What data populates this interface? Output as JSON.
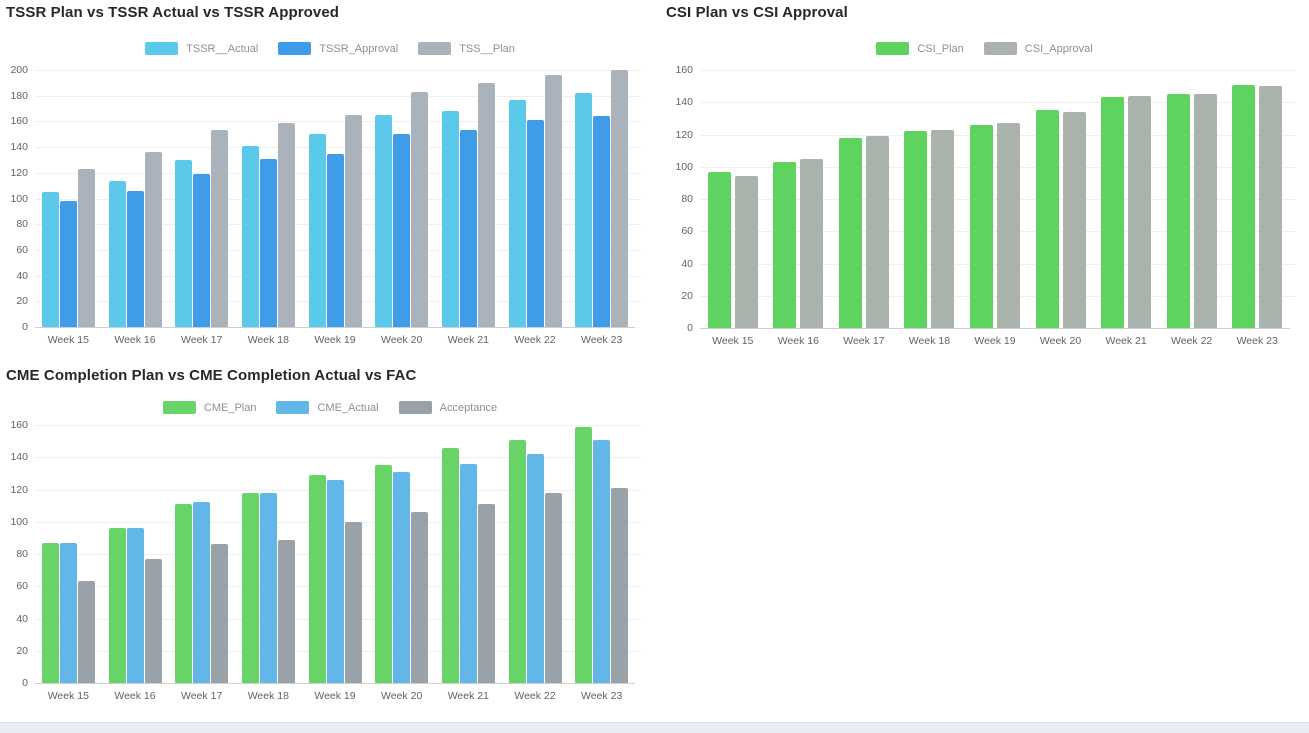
{
  "chart_data": [
    {
      "type": "bar",
      "title": "TSSR Plan vs TSSR Actual vs TSSR Approved",
      "categories": [
        "Week 15",
        "Week 16",
        "Week 17",
        "Week 18",
        "Week 19",
        "Week 20",
        "Week 21",
        "Week 22",
        "Week 23"
      ],
      "series": [
        {
          "name": "TSSR__Actual",
          "color": "#5bc9e9",
          "values": [
            105,
            114,
            130,
            141,
            150,
            165,
            168,
            177,
            182
          ]
        },
        {
          "name": "TSSR_Approval",
          "color": "#3f9ce8",
          "values": [
            98,
            106,
            119,
            131,
            135,
            150,
            153,
            161,
            164
          ]
        },
        {
          "name": "TSS__Plan",
          "color": "#aab3bb",
          "values": [
            123,
            136,
            153,
            159,
            165,
            183,
            190,
            196,
            200
          ]
        }
      ],
      "xlabel": "",
      "ylabel": "",
      "ylim": [
        0,
        200
      ],
      "ytick_step": 20,
      "grid": true,
      "legend_position": "top"
    },
    {
      "type": "bar",
      "title": "CSI Plan vs CSI Approval",
      "categories": [
        "Week 15",
        "Week 16",
        "Week 17",
        "Week 18",
        "Week 19",
        "Week 20",
        "Week 21",
        "Week 22",
        "Week 23"
      ],
      "series": [
        {
          "name": "CSI_Plan",
          "color": "#5fd35f",
          "values": [
            97,
            103,
            118,
            122,
            126,
            135,
            143,
            145,
            151
          ]
        },
        {
          "name": "CSI_Approval",
          "color": "#a9b2ab",
          "values": [
            94,
            105,
            119,
            123,
            127,
            134,
            144,
            145,
            150
          ]
        }
      ],
      "xlabel": "",
      "ylabel": "",
      "ylim": [
        0,
        160
      ],
      "ytick_step": 20,
      "grid": true,
      "legend_position": "top"
    },
    {
      "type": "bar",
      "title": "CME Completion Plan vs CME Completion Actual vs FAC",
      "categories": [
        "Week 15",
        "Week 16",
        "Week 17",
        "Week 18",
        "Week 19",
        "Week 20",
        "Week 21",
        "Week 22",
        "Week 23"
      ],
      "series": [
        {
          "name": "CME_Plan",
          "color": "#68d468",
          "values": [
            87,
            96,
            111,
            118,
            129,
            135,
            146,
            151,
            159
          ]
        },
        {
          "name": "CME_Actual",
          "color": "#63b7e8",
          "values": [
            87,
            96,
            112,
            118,
            126,
            131,
            136,
            142,
            151
          ]
        },
        {
          "name": "Acceptance",
          "color": "#99a1a9",
          "values": [
            63,
            77,
            86,
            89,
            100,
            106,
            111,
            118,
            121
          ]
        }
      ],
      "xlabel": "",
      "ylabel": "",
      "ylim": [
        0,
        160
      ],
      "ytick_step": 20,
      "grid": true,
      "legend_position": "top"
    }
  ],
  "page": {
    "background_color": "#ffffff",
    "bottom_bar_color": "#e9edf3"
  }
}
